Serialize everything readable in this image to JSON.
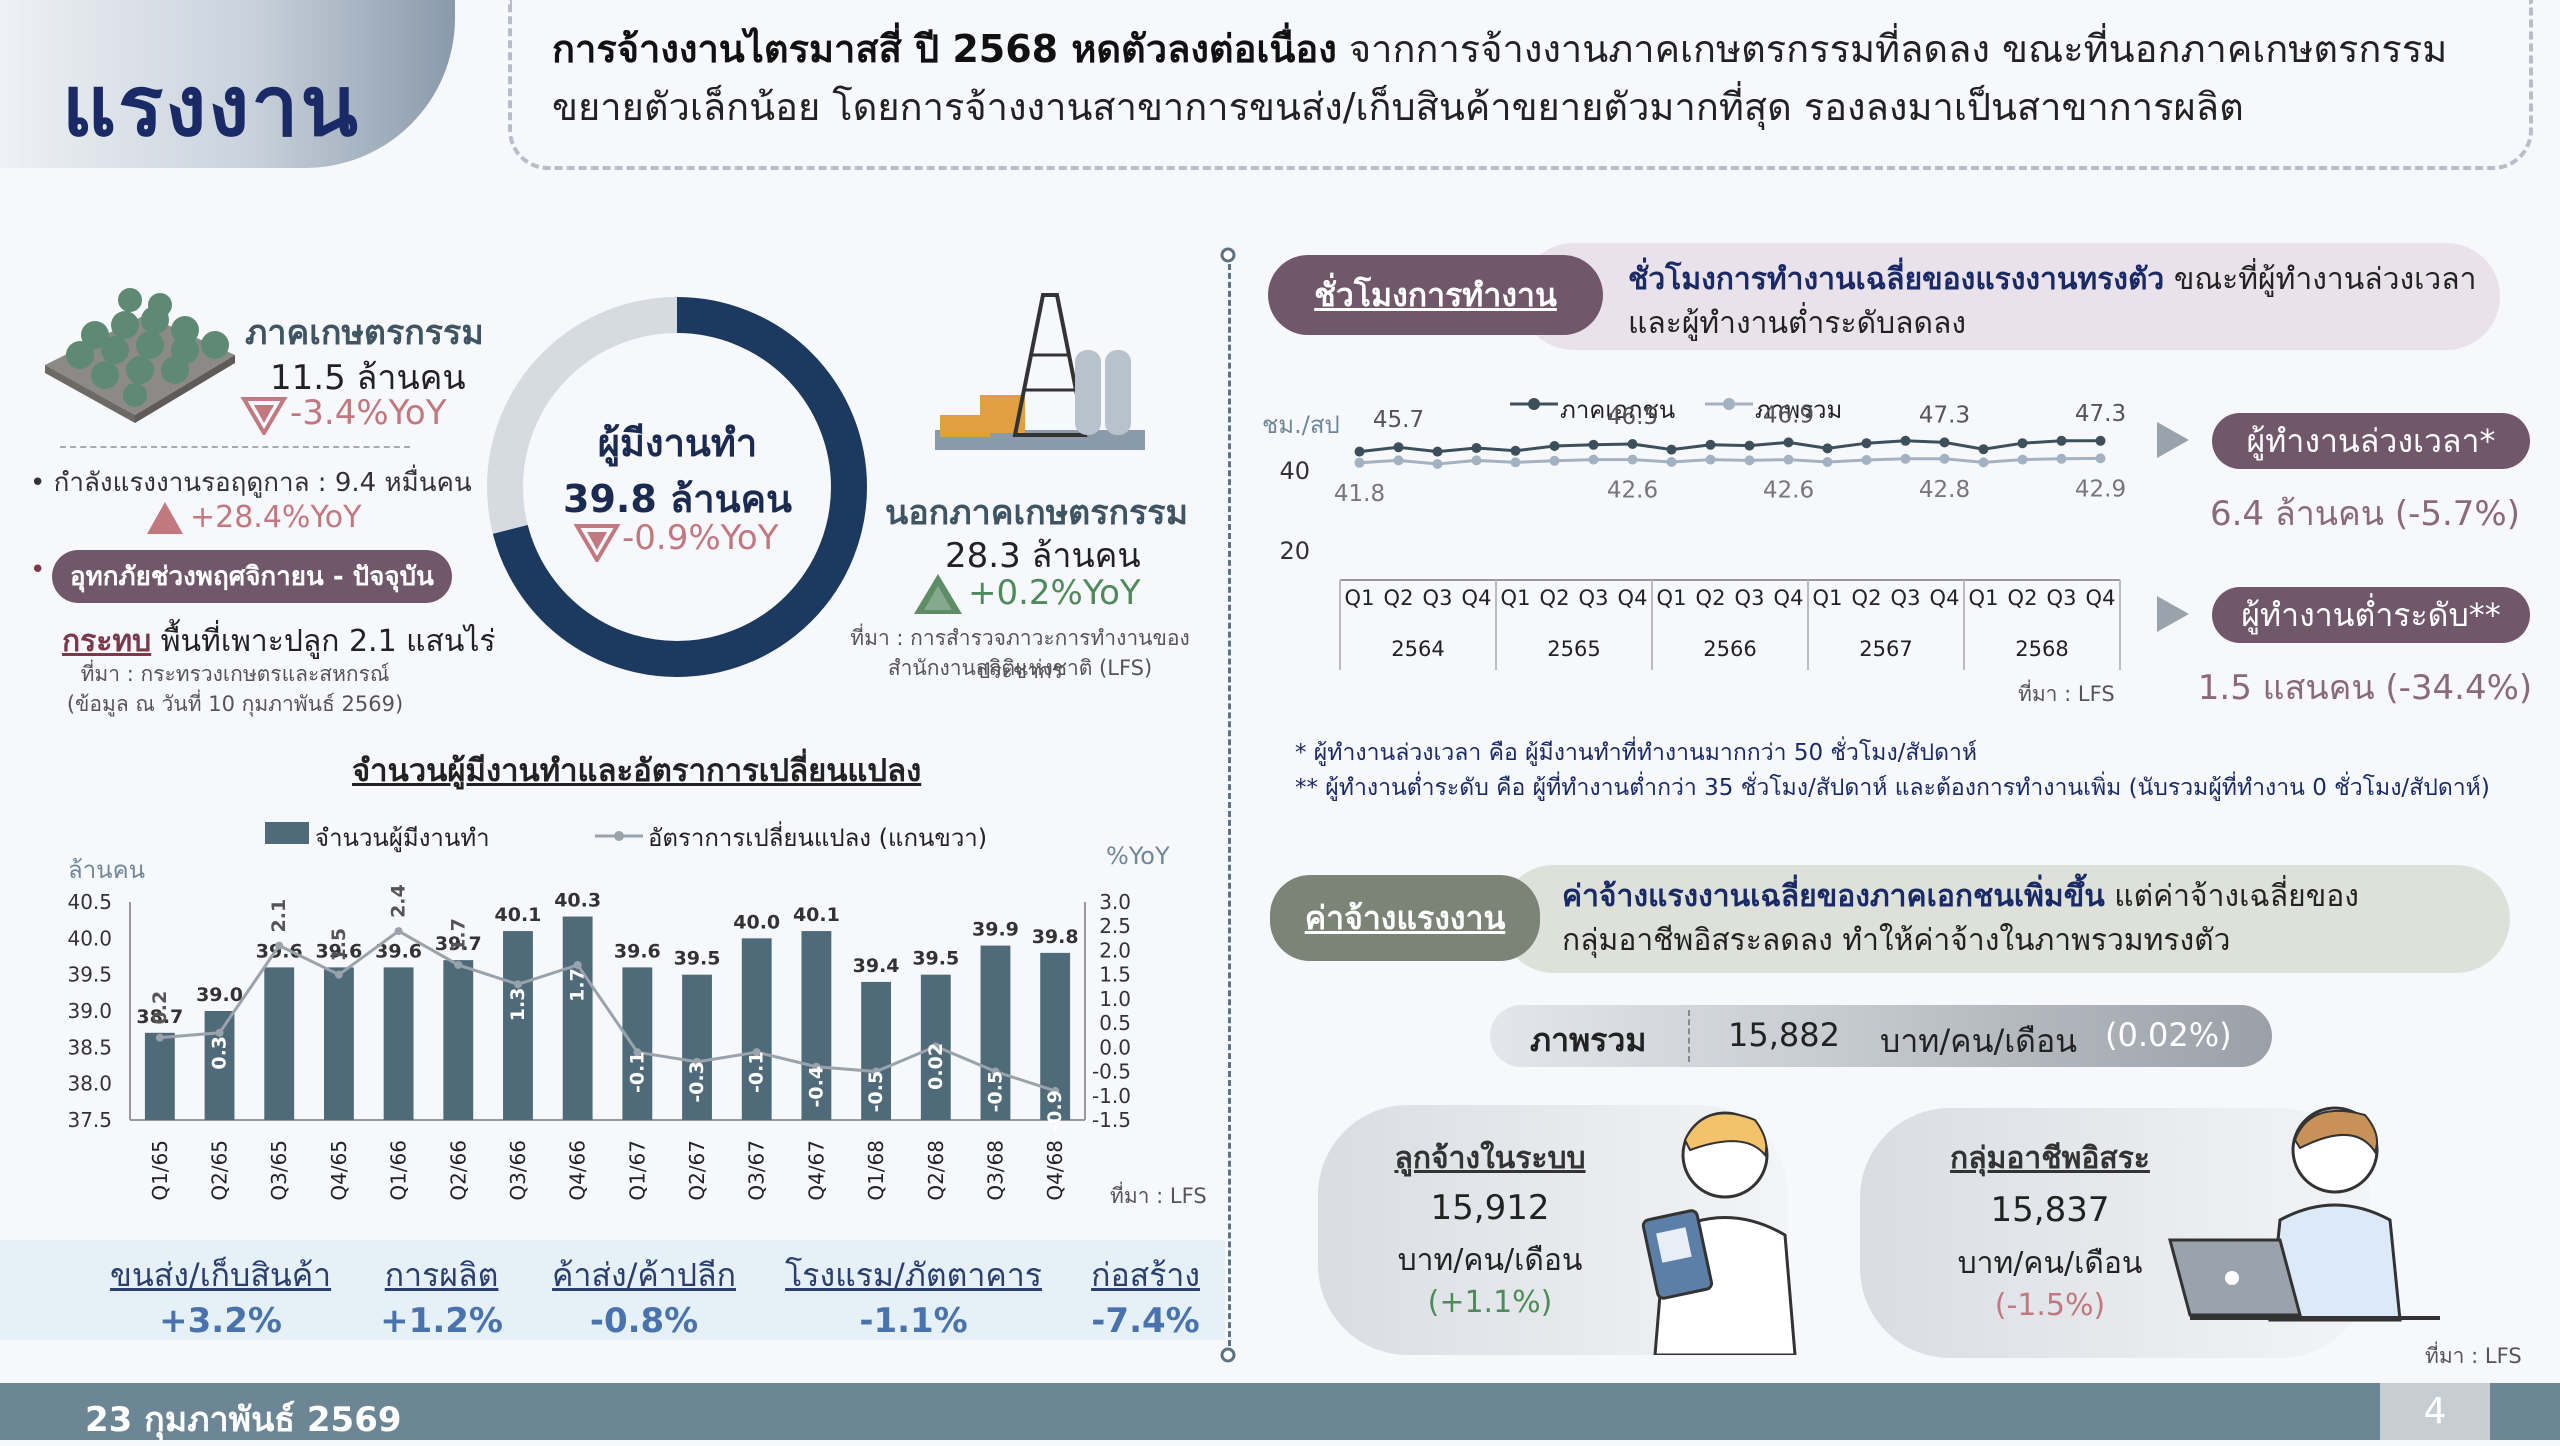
{
  "header": {
    "title": "แรงงาน",
    "headline_bold": "การจ้างงานไตรมาสสี่ ปี 2568 หดตัวลงต่อเนื่อง",
    "headline_rest": " จากการจ้างงานภาคเกษตรกรรมที่ลดลง ขณะที่นอกภาคเกษตรกรรมขยายตัวเล็กน้อย โดยการจ้างงานสาขาการขนส่ง/เก็บสินค้าขยายตัวมากที่สุด รองลงมาเป็นสาขาการผลิต"
  },
  "agri": {
    "label": "ภาคเกษตรกรรม",
    "value": "11.5 ล้านคน",
    "yoy": "-3.4%YoY",
    "seasonal": "กำลังแรงงานรอฤดูกาล : 9.4 หมื่นคน",
    "seasonal_yoy": "+28.4%YoY",
    "flood_tag": "อุทกภัยช่วงพฤศจิกายน - ปัจจุบัน",
    "flood_source_name": "กระทบ",
    "flood_text": "พื้นที่เพาะปลูก 2.1 แสนไร่",
    "flood_src1": "ที่มา : กระทรวงเกษตรและสหกรณ์",
    "flood_src2": "(ข้อมูล ณ วันที่ 10 กุมภาพันธ์ 2569)"
  },
  "employed": {
    "label": "ผู้มีงานทำ",
    "value": "39.8 ล้านคน",
    "yoy": "-0.9%YoY",
    "share_fraction": 0.71
  },
  "nonagri": {
    "label": "นอกภาคเกษตรกรรม",
    "value": "28.3 ล้านคน",
    "yoy": "+0.2%YoY",
    "src1": "ที่มา : การสำรวจภาวะการทำงานของประชากร",
    "src2": "สำนักงานสถิติแห่งชาติ (LFS)"
  },
  "employment_chart": {
    "title": "จำนวนผู้มีงานทำและอัตราการเปลี่ยนแปลง",
    "legend_bar": "จำนวนผู้มีงานทำ",
    "legend_line": "อัตราการเปลี่ยนแปลง (แกนขวา)",
    "ylabel_left": "ล้านคน",
    "ylabel_right": "%YoY",
    "source": "ที่มา : LFS"
  },
  "sectors": [
    {
      "name": "ขนส่ง/เก็บสินค้า",
      "value": "+3.2%"
    },
    {
      "name": "การผลิต",
      "value": "+1.2%"
    },
    {
      "name": "ค้าส่ง/ค้าปลีก",
      "value": "-0.8%"
    },
    {
      "name": "โรงแรม/ภัตตาคาร",
      "value": "-1.1%"
    },
    {
      "name": "ก่อสร้าง",
      "value": "-7.4%"
    }
  ],
  "hours": {
    "tag": "ชั่วโมงการทำงาน",
    "desc_bold": "ชั่วโมงการทำงานเฉลี่ยของแรงงานทรงตัว",
    "desc_rest1": " ขณะที่ผู้ทำงานล่วงเวลา",
    "desc_rest2": "และผู้ทำงานต่ำระดับลดลง",
    "unit": "ชม./สป",
    "legend_private": "ภาคเอกชน",
    "legend_total": "ภาพรวม",
    "source": "ที่มา : LFS",
    "overtime_tag": "ผู้ทำงานล่วงเวลา*",
    "overtime_val": "6.4 ล้านคน (-5.7%)",
    "under_tag": "ผู้ทำงานต่ำระดับ**",
    "under_val": "1.5 แสนคน (-34.4%)",
    "note1": "* ผู้ทำงานล่วงเวลา คือ ผู้มีงานทำที่ทำงานมากกว่า 50 ชั่วโมง/สัปดาห์",
    "note2": "** ผู้ทำงานต่ำระดับ คือ ผู้ที่ทำงานต่ำกว่า 35 ชั่วโมง/สัปดาห์ และต้องการทำงานเพิ่ม (นับรวมผู้ที่ทำงาน 0 ชั่วโมง/สัปดาห์)"
  },
  "wage": {
    "tag": "ค่าจ้างแรงงาน",
    "desc_bold": "ค่าจ้างแรงงานเฉลี่ยของภาคเอกชนเพิ่มขึ้น",
    "desc_rest1": " แต่ค่าจ้างเฉลี่ยของ",
    "desc_rest2": "กลุ่มอาชีพอิสระลดลง ทำให้ค่าจ้างในภาพรวมทรงตัว",
    "overall_label": "ภาพรวม",
    "overall_value": "15,882",
    "overall_unit": "บาท/คน/เดือน",
    "overall_change": "(0.02%)",
    "formal_label": "ลูกจ้างในระบบ",
    "formal_value": "15,912",
    "formal_unit": "บาท/คน/เดือน",
    "formal_change": "(+1.1%)",
    "self_label": "กลุ่มอาชีพอิสระ",
    "self_value": "15,837",
    "self_unit": "บาท/คน/เดือน",
    "self_change": "(-1.5%)",
    "source": "ที่มา : LFS"
  },
  "footer": {
    "date": "23 กุมภาพันธ์ 2569",
    "page": "4"
  },
  "colors": {
    "navy": "#1a2a66",
    "bar": "#4f6a79",
    "private_line": "#3d4f5b",
    "total_line": "#a3b2c2",
    "up": "#4f8a5a",
    "down": "#c2787f"
  },
  "chart_data": [
    {
      "type": "bar",
      "title": "จำนวนผู้มีงานทำและอัตราการเปลี่ยนแปลง",
      "categories": [
        "Q1/65",
        "Q2/65",
        "Q3/65",
        "Q4/65",
        "Q1/66",
        "Q2/66",
        "Q3/66",
        "Q4/66",
        "Q1/67",
        "Q2/67",
        "Q3/67",
        "Q4/67",
        "Q1/68",
        "Q2/68",
        "Q3/68",
        "Q4/68"
      ],
      "series": [
        {
          "name": "จำนวนผู้มีงานทำ",
          "axis": "left",
          "values": [
            38.7,
            39.0,
            39.6,
            39.6,
            39.6,
            39.7,
            40.1,
            40.3,
            39.6,
            39.5,
            40.0,
            40.1,
            39.4,
            39.5,
            39.9,
            39.8
          ]
        },
        {
          "name": "อัตราการเปลี่ยนแปลง (แกนขวา)",
          "axis": "right",
          "type": "line",
          "values": [
            0.2,
            0.3,
            2.1,
            1.5,
            2.4,
            1.7,
            1.3,
            1.7,
            -0.1,
            -0.3,
            -0.1,
            -0.4,
            -0.5,
            0.02,
            -0.5,
            -0.9
          ]
        }
      ],
      "value_labels": [
        "38.7",
        "39.0",
        "39.6",
        "39.6",
        "39.6",
        "39.7",
        "40.1",
        "40.3",
        "39.6",
        "39.5",
        "40.0",
        "40.1",
        "39.4",
        "39.5",
        "39.9",
        "39.8"
      ],
      "rate_labels": [
        "0.2",
        "0.3",
        "2.1",
        "1.5",
        "2.4",
        "1.7",
        "1.3",
        "1.7",
        "-0.1",
        "-0.3",
        "-0.1",
        "-0.4",
        "-0.5",
        "0.02",
        "-0.5",
        "-0.9"
      ],
      "ylabel": "ล้านคน",
      "ylabel_right": "%YoY",
      "yticks_left": [
        "40.5",
        "40.0",
        "39.5",
        "39.0",
        "38.5",
        "38.0",
        "37.5"
      ],
      "yticks_right": [
        "3.0",
        "2.5",
        "2.0",
        "1.5",
        "1.0",
        "0.5",
        "0.0",
        "-0.5",
        "-1.0",
        "-1.5"
      ],
      "ylim": [
        37.5,
        40.5
      ],
      "ylim_right": [
        -1.5,
        3.0
      ]
    },
    {
      "type": "line",
      "quarters": [
        "Q1",
        "Q2",
        "Q3",
        "Q4"
      ],
      "years": [
        "2564",
        "2565",
        "2566",
        "2567",
        "2568"
      ],
      "series": [
        {
          "name": "ภาคเอกชน",
          "values": [
            44.6,
            45.7,
            44.6,
            45.5,
            44.8,
            46.0,
            46.3,
            46.5,
            45.1,
            46.3,
            46.1,
            46.9,
            45.4,
            46.7,
            47.3,
            46.9,
            45.2,
            46.7,
            47.3,
            47.3
          ]
        },
        {
          "name": "ภาพรวม",
          "values": [
            41.8,
            42.4,
            41.5,
            42.4,
            41.9,
            42.3,
            42.6,
            42.6,
            42.0,
            42.6,
            42.4,
            42.6,
            42.0,
            42.5,
            42.8,
            42.8,
            41.9,
            42.6,
            42.8,
            42.9
          ]
        }
      ],
      "data_labels_private": [
        "45.7",
        "46.5",
        "46.9",
        "47.3",
        "47.3"
      ],
      "data_labels_total": [
        "41.8",
        "42.6",
        "42.6",
        "42.8",
        "42.9"
      ],
      "yticks": [
        "40",
        "20"
      ],
      "ylabel": "ชม./สป",
      "ylim": [
        15,
        50
      ]
    }
  ]
}
